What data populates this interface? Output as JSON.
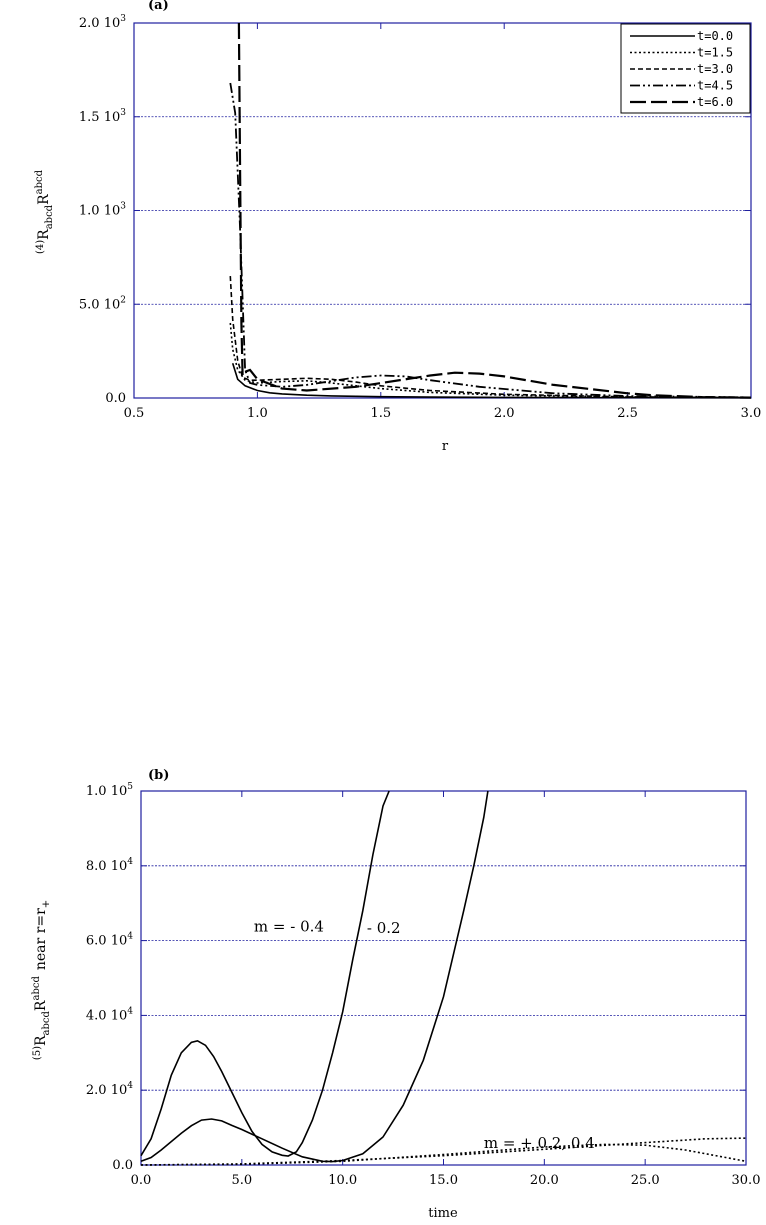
{
  "chart_data": [
    {
      "type": "line",
      "panel_label": "(a)",
      "xlabel": "r",
      "ylabel": {
        "pre": "(4)",
        "main": "R",
        "sub": "abcd",
        "main2": "R",
        "sup": "abcd"
      },
      "xlim": [
        0.5,
        3.0
      ],
      "ylim": [
        0,
        2000
      ],
      "grid": true,
      "legend_position": "top-right",
      "xticks": [
        {
          "v": 0.5,
          "label": "0.5"
        },
        {
          "v": 1.0,
          "label": "1.0"
        },
        {
          "v": 1.5,
          "label": "1.5"
        },
        {
          "v": 2.0,
          "label": "2.0"
        },
        {
          "v": 2.5,
          "label": "2.5"
        },
        {
          "v": 3.0,
          "label": "3.0"
        }
      ],
      "yticks": [
        {
          "v": 0,
          "label": "0.0",
          "exp": ""
        },
        {
          "v": 500,
          "label": "5.0 10",
          "exp": "2"
        },
        {
          "v": 1000,
          "label": "1.0 10",
          "exp": "3"
        },
        {
          "v": 1500,
          "label": "1.5 10",
          "exp": "3"
        },
        {
          "v": 2000,
          "label": "2.0 10",
          "exp": "3"
        }
      ],
      "series": [
        {
          "name": "t=0.0",
          "style": "solid",
          "x": [
            0.9,
            0.92,
            0.95,
            1.0,
            1.05,
            1.1,
            1.2,
            1.3,
            1.5,
            1.7,
            2.0,
            2.5,
            3.0
          ],
          "y": [
            185,
            100,
            65,
            40,
            28,
            22,
            15,
            11,
            7,
            5,
            3,
            2,
            1
          ]
        },
        {
          "name": "t=1.5",
          "style": "dotted",
          "x": [
            0.89,
            0.9,
            0.92,
            0.95,
            1.0,
            1.1,
            1.2,
            1.3,
            1.5,
            1.7,
            2.0,
            2.5,
            3.0
          ],
          "y": [
            400,
            260,
            150,
            95,
            80,
            88,
            92,
            80,
            50,
            30,
            15,
            5,
            2
          ]
        },
        {
          "name": "t=3.0",
          "style": "dashed",
          "x": [
            0.89,
            0.9,
            0.92,
            0.94,
            0.97,
            1.0,
            1.1,
            1.2,
            1.3,
            1.4,
            1.5,
            1.7,
            2.0,
            2.5,
            3.0
          ],
          "y": [
            650,
            420,
            200,
            110,
            95,
            95,
            100,
            105,
            100,
            85,
            65,
            40,
            20,
            6,
            2
          ]
        },
        {
          "name": "t=4.5",
          "style": "dashdotdot",
          "x": [
            0.89,
            0.91,
            0.93,
            0.95,
            0.97,
            1.0,
            1.1,
            1.2,
            1.3,
            1.4,
            1.5,
            1.6,
            1.7,
            1.9,
            2.2,
            2.5,
            3.0
          ],
          "y": [
            1680,
            1520,
            900,
            150,
            80,
            70,
            60,
            70,
            90,
            110,
            120,
            115,
            95,
            60,
            25,
            10,
            3
          ]
        },
        {
          "name": "t=6.0",
          "style": "longdash",
          "x": [
            0.925,
            0.93,
            0.935,
            0.94,
            0.95,
            0.97,
            1.0,
            1.1,
            1.2,
            1.4,
            1.6,
            1.7,
            1.8,
            1.9,
            2.0,
            2.2,
            2.5,
            2.6,
            2.8,
            3.0
          ],
          "y": [
            2000,
            1200,
            400,
            120,
            140,
            150,
            100,
            50,
            40,
            60,
            100,
            120,
            135,
            130,
            115,
            70,
            25,
            15,
            5,
            2
          ]
        }
      ]
    },
    {
      "type": "line",
      "panel_label": "(b)",
      "xlabel": "time",
      "ylabel": {
        "pre": "(5)",
        "main": "R",
        "sub": "abcd",
        "main2": "R",
        "sup": "abcd",
        "tail": "near  r=r",
        "tailsub": "+"
      },
      "xlim": [
        0,
        30
      ],
      "ylim": [
        0,
        100000
      ],
      "grid": true,
      "xticks": [
        {
          "v": 0,
          "label": "0.0"
        },
        {
          "v": 5,
          "label": "5.0"
        },
        {
          "v": 10,
          "label": "10.0"
        },
        {
          "v": 15,
          "label": "15.0"
        },
        {
          "v": 20,
          "label": "20.0"
        },
        {
          "v": 25,
          "label": "25.0"
        },
        {
          "v": 30,
          "label": "30.0"
        }
      ],
      "yticks": [
        {
          "v": 0,
          "label": "0.0",
          "exp": ""
        },
        {
          "v": 20000,
          "label": "2.0 10",
          "exp": "4"
        },
        {
          "v": 40000,
          "label": "4.0 10",
          "exp": "4"
        },
        {
          "v": 60000,
          "label": "6.0 10",
          "exp": "4"
        },
        {
          "v": 80000,
          "label": "8.0 10",
          "exp": "4"
        },
        {
          "v": 100000,
          "label": "1.0 10",
          "exp": "5"
        }
      ],
      "annotations": [
        {
          "text": "m = - 0.4",
          "x": 5.6,
          "y": 62500
        },
        {
          "text": "- 0.2",
          "x": 11.2,
          "y": 62000
        },
        {
          "text": "m = + 0.2, 0.4",
          "x": 17.0,
          "y": 4500
        }
      ],
      "series": [
        {
          "style": "solid",
          "x": [
            0,
            0.5,
            1,
            1.5,
            2,
            2.5,
            2.8,
            3.2,
            3.6,
            4,
            4.5,
            5,
            5.5,
            6,
            6.5,
            7,
            7.3,
            7.7,
            8,
            8.5,
            9,
            9.5,
            10,
            10.5,
            11,
            11.5,
            12,
            12.3
          ],
          "y": [
            2500,
            7000,
            15000,
            24000,
            30000,
            32800,
            33200,
            32000,
            29000,
            25000,
            19500,
            14000,
            9000,
            5500,
            3500,
            2600,
            2400,
            3500,
            6000,
            12000,
            20000,
            30000,
            41000,
            55000,
            68000,
            83000,
            96000,
            100000
          ]
        },
        {
          "style": "solid",
          "x": [
            0,
            0.5,
            1,
            2,
            2.5,
            3,
            3.5,
            4,
            4.5,
            5,
            6,
            7,
            8,
            9,
            9.5,
            10,
            11,
            12,
            13,
            14,
            15,
            16,
            16.5,
            17,
            17.2
          ],
          "y": [
            1000,
            2000,
            4000,
            8500,
            10500,
            12000,
            12300,
            11800,
            10600,
            9500,
            7000,
            4500,
            2200,
            1000,
            900,
            1200,
            3000,
            7500,
            16000,
            28000,
            45000,
            68000,
            80000,
            93000,
            100000
          ]
        },
        {
          "style": "dotted",
          "x": [
            0,
            5,
            10,
            15,
            20,
            25,
            28,
            30
          ],
          "y": [
            0,
            300,
            1200,
            2500,
            4200,
            6000,
            7000,
            7200
          ]
        },
        {
          "style": "dotted",
          "x": [
            0,
            5,
            10,
            15,
            20,
            23,
            25,
            27,
            30
          ],
          "y": [
            0,
            200,
            1000,
            2800,
            4800,
            5500,
            5300,
            4000,
            1000
          ]
        }
      ]
    }
  ]
}
